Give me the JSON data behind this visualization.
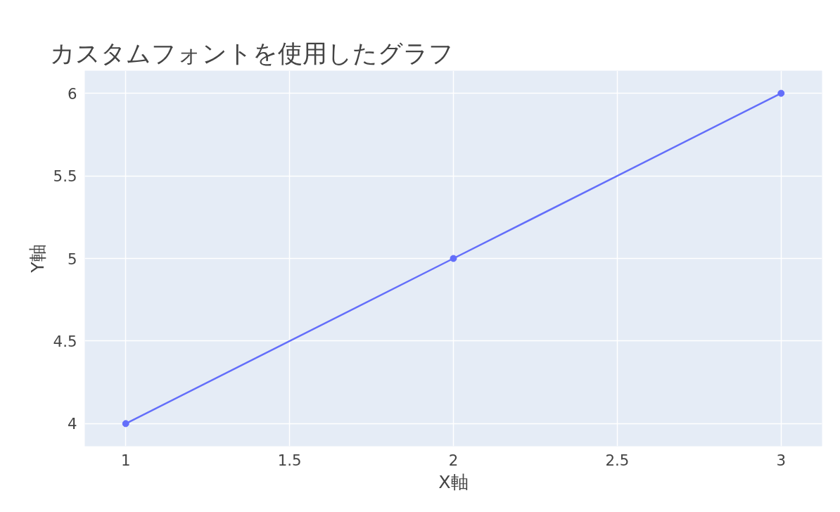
{
  "chart_data": {
    "type": "line",
    "title": "カスタムフォントを使用したグラフ",
    "xlabel": "X軸",
    "ylabel": "Y軸",
    "x": [
      1,
      2,
      3
    ],
    "series": [
      {
        "color": "#636efa",
        "values": [
          4,
          5,
          6
        ]
      }
    ],
    "xlim": [
      0.875,
      3.125
    ],
    "ylim": [
      3.863,
      6.137
    ],
    "xticks": [
      1,
      1.5,
      2,
      2.5,
      3
    ],
    "yticks": [
      4,
      4.5,
      5,
      5.5,
      6
    ],
    "grid": true,
    "marker": "circle",
    "line_style": "solid"
  }
}
